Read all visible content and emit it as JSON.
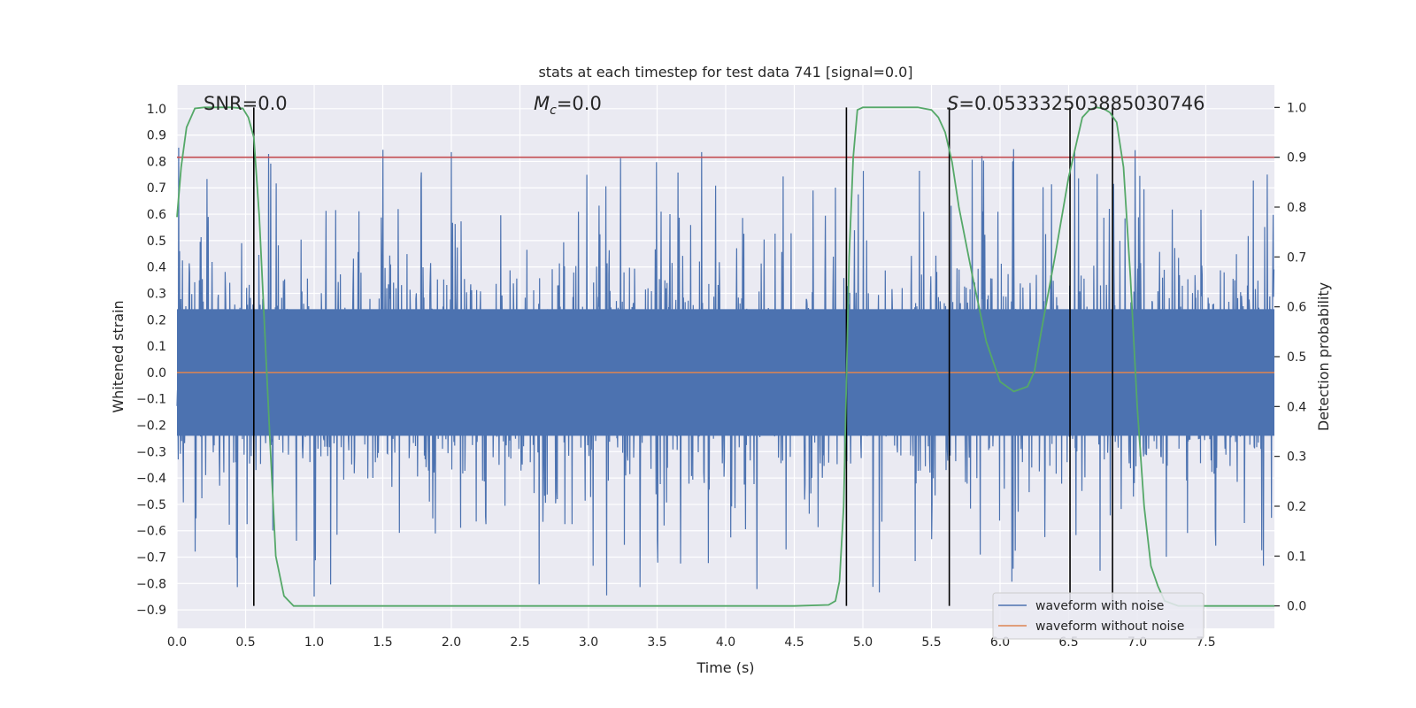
{
  "chart_data": {
    "type": "line",
    "title": "stats at each timestep for test data 741 [signal=0.0]",
    "xlabel": "Time (s)",
    "ylabel_left": "Whitened strain",
    "ylabel_right": "Detection probability",
    "xlim": [
      0.0,
      8.0
    ],
    "ylim_left": [
      -0.97,
      1.09
    ],
    "ylim_right": [
      -0.045,
      1.045
    ],
    "x_ticks": [
      "0.0",
      "0.5",
      "1.0",
      "1.5",
      "2.0",
      "2.5",
      "3.0",
      "3.5",
      "4.0",
      "4.5",
      "5.0",
      "5.5",
      "6.0",
      "6.5",
      "7.0",
      "7.5"
    ],
    "y_ticks_left": [
      "-0.9",
      "-0.8",
      "-0.7",
      "-0.6",
      "-0.5",
      "-0.4",
      "-0.3",
      "-0.2",
      "-0.1",
      "0.0",
      "0.1",
      "0.2",
      "0.3",
      "0.4",
      "0.5",
      "0.6",
      "0.7",
      "0.8",
      "0.9",
      "1.0"
    ],
    "y_ticks_right": [
      "0.0",
      "0.1",
      "0.2",
      "0.3",
      "0.4",
      "0.5",
      "0.6",
      "0.7",
      "0.8",
      "0.9",
      "1.0"
    ],
    "grid": true,
    "annotations": {
      "snr": "SNR=0.0",
      "mc_symbol": "M",
      "mc_sub": "c",
      "mc_value": "=0.0",
      "s_symbol": "S",
      "s_value": "=0.05333250388503074",
      "s_last": "6"
    },
    "threshold": {
      "axis": "right",
      "value": 0.9,
      "color": "#c44e52"
    },
    "vertical_lines": [
      0.56,
      4.88,
      5.63,
      6.51,
      6.82
    ],
    "series": [
      {
        "name": "waveform with noise",
        "axis": "left",
        "color": "#4c72b0",
        "kind": "noise",
        "envelope": 0.5
      },
      {
        "name": "waveform without noise",
        "axis": "left",
        "color": "#dd8452",
        "value": 0.0
      },
      {
        "name": "detection probability",
        "axis": "right",
        "color": "#55a868",
        "x": [
          0.0,
          0.03,
          0.07,
          0.13,
          0.2,
          0.3,
          0.4,
          0.48,
          0.52,
          0.56,
          0.6,
          0.64,
          0.68,
          0.72,
          0.78,
          0.85,
          1.0,
          2.0,
          3.0,
          4.0,
          4.5,
          4.75,
          4.8,
          4.83,
          4.86,
          4.88,
          4.9,
          4.93,
          4.96,
          5.0,
          5.2,
          5.4,
          5.5,
          5.55,
          5.6,
          5.65,
          5.7,
          5.8,
          5.9,
          6.0,
          6.1,
          6.15,
          6.2,
          6.25,
          6.3,
          6.4,
          6.5,
          6.6,
          6.65,
          6.7,
          6.75,
          6.8,
          6.85,
          6.9,
          6.95,
          7.0,
          7.05,
          7.1,
          7.15,
          7.2,
          7.3,
          8.0
        ],
        "y": [
          0.78,
          0.88,
          0.96,
          0.998,
          1.0,
          1.0,
          1.0,
          0.998,
          0.98,
          0.94,
          0.78,
          0.55,
          0.32,
          0.1,
          0.02,
          0.0,
          0.0,
          0.0,
          0.0,
          0.0,
          0.0,
          0.002,
          0.01,
          0.05,
          0.2,
          0.45,
          0.7,
          0.9,
          0.995,
          1.0,
          1.0,
          1.0,
          0.995,
          0.98,
          0.95,
          0.89,
          0.8,
          0.66,
          0.53,
          0.45,
          0.43,
          0.435,
          0.44,
          0.47,
          0.55,
          0.7,
          0.86,
          0.98,
          0.995,
          1.0,
          0.998,
          0.99,
          0.97,
          0.88,
          0.66,
          0.4,
          0.2,
          0.08,
          0.04,
          0.01,
          0.0,
          0.0
        ]
      }
    ],
    "legend": {
      "location": "lower-right",
      "entries": [
        "waveform with noise",
        "waveform without noise"
      ]
    }
  }
}
